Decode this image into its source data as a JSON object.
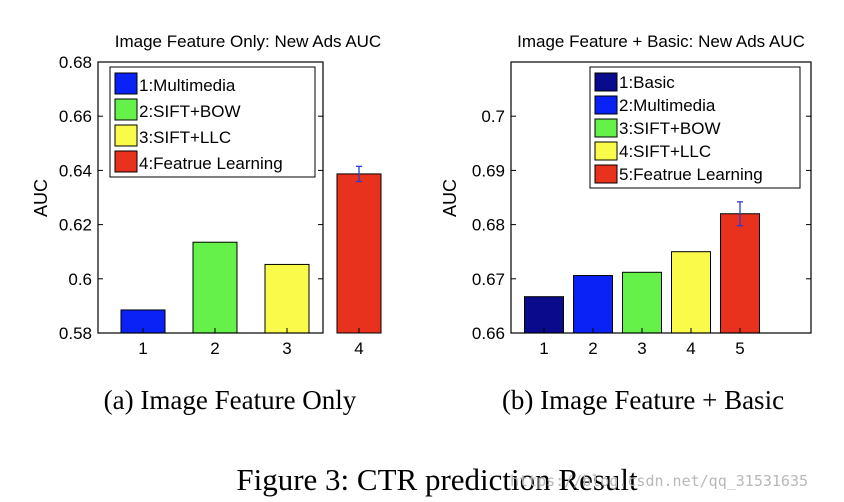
{
  "chart_data": [
    {
      "type": "bar",
      "title": "Image Feature Only: New Ads AUC",
      "ylabel": "AUC",
      "xlabel": "",
      "categories": [
        "1",
        "2",
        "3",
        "4"
      ],
      "values": [
        0.5885,
        0.6135,
        0.6053,
        0.6387
      ],
      "error": [
        null,
        null,
        null,
        0.0028
      ],
      "colors": [
        "#0a22f5",
        "#66f04a",
        "#fafa4a",
        "#e8321e"
      ],
      "ylim": [
        0.58,
        0.68
      ],
      "yticks": [
        "0.58",
        "0.6",
        "0.62",
        "0.64",
        "0.66",
        "0.68"
      ],
      "legend": [
        "1:Multimedia",
        "2:SIFT+BOW",
        "3:SIFT+LLC",
        "4:Featrue Learning"
      ],
      "legend_position": "top-left",
      "grid": false,
      "caption": "(a) Image Feature Only"
    },
    {
      "type": "bar",
      "title": "Image Feature + Basic: New Ads AUC",
      "ylabel": "AUC",
      "xlabel": "",
      "categories": [
        "1",
        "2",
        "3",
        "4",
        "5"
      ],
      "values": [
        0.6667,
        0.6706,
        0.6712,
        0.675,
        0.682
      ],
      "error": [
        null,
        null,
        null,
        null,
        0.0022
      ],
      "colors": [
        "#0a0a8c",
        "#0a22f5",
        "#66f04a",
        "#fafa4a",
        "#e8321e"
      ],
      "ylim": [
        0.66,
        0.71
      ],
      "yticks": [
        "0.66",
        "0.67",
        "0.68",
        "0.69",
        "0.7"
      ],
      "legend": [
        "1:Basic",
        "2:Multimedia",
        "3:SIFT+BOW",
        "4:SIFT+LLC",
        "5:Featrue Learning"
      ],
      "legend_position": "top-right",
      "grid": false,
      "caption": "(b) Image Feature + Basic"
    }
  ],
  "figure_caption": "Figure 3: CTR prediction Result",
  "watermark": "https://blog.csdn.net/qq_31531635"
}
